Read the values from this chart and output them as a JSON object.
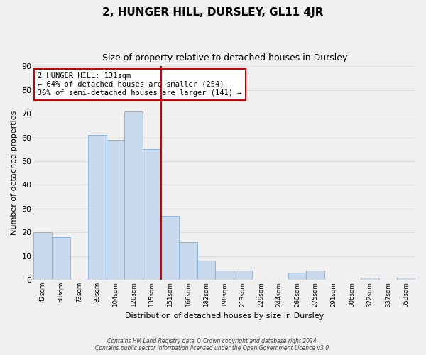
{
  "title": "2, HUNGER HILL, DURSLEY, GL11 4JR",
  "subtitle": "Size of property relative to detached houses in Dursley",
  "xlabel": "Distribution of detached houses by size in Dursley",
  "ylabel": "Number of detached properties",
  "categories": [
    "42sqm",
    "58sqm",
    "73sqm",
    "89sqm",
    "104sqm",
    "120sqm",
    "135sqm",
    "151sqm",
    "166sqm",
    "182sqm",
    "198sqm",
    "213sqm",
    "229sqm",
    "244sqm",
    "260sqm",
    "275sqm",
    "291sqm",
    "306sqm",
    "322sqm",
    "337sqm",
    "353sqm"
  ],
  "values": [
    20,
    18,
    0,
    61,
    59,
    71,
    55,
    27,
    16,
    8,
    4,
    4,
    0,
    0,
    3,
    4,
    0,
    0,
    1,
    0,
    1
  ],
  "bar_color": "#c8d9ee",
  "bar_edge_color": "#8bb4d8",
  "marker_index": 6,
  "marker_line_color": "#cc0000",
  "annotation_title": "2 HUNGER HILL: 131sqm",
  "annotation_line1": "← 64% of detached houses are smaller (254)",
  "annotation_line2": "36% of semi-detached houses are larger (141) →",
  "annotation_box_color": "#ffffff",
  "annotation_box_edge": "#cc0000",
  "ylim": [
    0,
    90
  ],
  "yticks": [
    0,
    10,
    20,
    30,
    40,
    50,
    60,
    70,
    80,
    90
  ],
  "grid_color": "#dddddd",
  "bg_color": "#f0f0f0",
  "footer_line1": "Contains HM Land Registry data © Crown copyright and database right 2024.",
  "footer_line2": "Contains public sector information licensed under the Open Government Licence v3.0."
}
